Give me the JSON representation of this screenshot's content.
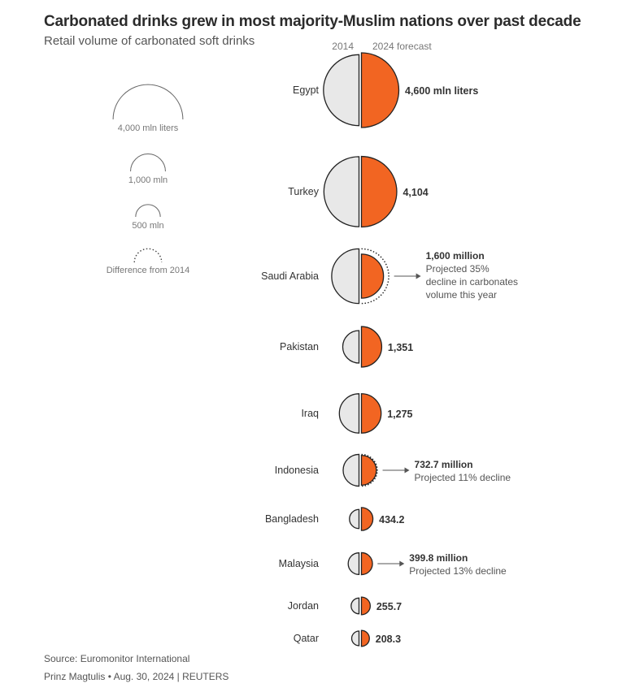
{
  "title": "Carbonated drinks grew in most majority-Muslim nations over past decade",
  "subtitle": "Retail volume of carbonated soft drinks",
  "source": "Source: Euromonitor International",
  "credit": "Prinz Magtulis • Aug. 30, 2024 | REUTERS",
  "colors": {
    "y2014": "#e8e8e8",
    "y2024": "#f26522",
    "stroke": "#222222",
    "muted": "#777777"
  },
  "legend": {
    "items": [
      {
        "label": "4,000 mln liters",
        "value": 4000
      },
      {
        "label": "1,000 mln",
        "value": 1000
      },
      {
        "label": "500 mln",
        "value": 500
      }
    ],
    "difference_label": "Difference from 2014"
  },
  "chart_data": {
    "type": "half-circle-comparison",
    "title": "Carbonated drinks grew in most majority-Muslim nations over past decade",
    "subtitle": "Retail volume of carbonated soft drinks",
    "unit": "mln liters",
    "series": [
      {
        "name": "2014",
        "values": [
          4150,
          4050,
          2460,
          870,
          1270,
          830,
          300,
          385,
          205,
          175
        ]
      },
      {
        "name": "2024 forecast",
        "values": [
          4600,
          4104,
          1600,
          1351,
          1275,
          732.7,
          434.2,
          399.8,
          255.7,
          208.3
        ]
      }
    ],
    "categories": [
      "Egypt",
      "Turkey",
      "Saudi Arabia",
      "Pakistan",
      "Iraq",
      "Indonesia",
      "Bangladesh",
      "Malaysia",
      "Jordan",
      "Qatar"
    ],
    "value_labels": [
      "4,600 mln liters",
      "4,104",
      "1,600 million",
      "1,351",
      "1,275",
      "732.7 million",
      "434.2",
      "399.8  million",
      "255.7",
      "208.3"
    ],
    "notes": [
      {
        "category": "Saudi Arabia",
        "lines": [
          "Projected 35%",
          "decline in carbonates",
          "volume this year"
        ]
      },
      {
        "category": "Indonesia",
        "lines": [
          "Projected 11% decline"
        ]
      },
      {
        "category": "Malaysia",
        "lines": [
          "Projected 13% decline"
        ]
      }
    ]
  }
}
